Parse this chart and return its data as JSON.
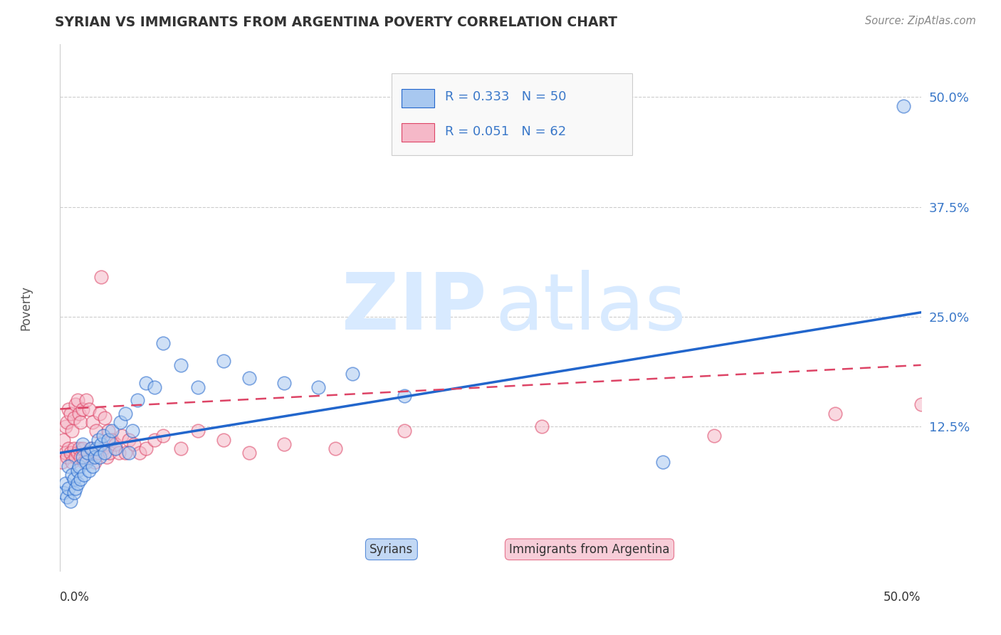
{
  "title": "SYRIAN VS IMMIGRANTS FROM ARGENTINA POVERTY CORRELATION CHART",
  "source": "Source: ZipAtlas.com",
  "ylabel": "Poverty",
  "xlim": [
    0.0,
    0.5
  ],
  "ylim": [
    -0.04,
    0.56
  ],
  "legend_r1": "R = 0.333",
  "legend_n1": "N = 50",
  "legend_r2": "R = 0.051",
  "legend_n2": "N = 62",
  "color_syrian": "#A8C8F0",
  "color_argentina": "#F5B8C8",
  "color_line_syrian": "#2266CC",
  "color_line_argentina": "#DD4466",
  "syrian_line_start_y": 0.095,
  "syrian_line_end_y": 0.255,
  "argentina_line_start_y": 0.145,
  "argentina_line_end_y": 0.195,
  "syrian_x": [
    0.002,
    0.003,
    0.004,
    0.005,
    0.005,
    0.006,
    0.007,
    0.008,
    0.008,
    0.009,
    0.01,
    0.01,
    0.011,
    0.012,
    0.013,
    0.013,
    0.014,
    0.015,
    0.016,
    0.017,
    0.018,
    0.019,
    0.02,
    0.021,
    0.022,
    0.023,
    0.024,
    0.025,
    0.026,
    0.028,
    0.03,
    0.032,
    0.035,
    0.038,
    0.04,
    0.042,
    0.045,
    0.05,
    0.055,
    0.06,
    0.07,
    0.08,
    0.095,
    0.11,
    0.13,
    0.15,
    0.17,
    0.2,
    0.35,
    0.49
  ],
  "syrian_y": [
    0.05,
    0.06,
    0.045,
    0.055,
    0.08,
    0.04,
    0.07,
    0.05,
    0.065,
    0.055,
    0.075,
    0.06,
    0.08,
    0.065,
    0.09,
    0.105,
    0.07,
    0.085,
    0.095,
    0.075,
    0.1,
    0.08,
    0.09,
    0.1,
    0.11,
    0.09,
    0.105,
    0.115,
    0.095,
    0.11,
    0.12,
    0.1,
    0.13,
    0.14,
    0.095,
    0.12,
    0.155,
    0.175,
    0.17,
    0.22,
    0.195,
    0.17,
    0.2,
    0.18,
    0.175,
    0.17,
    0.185,
    0.16,
    0.085,
    0.49
  ],
  "argentina_x": [
    0.001,
    0.002,
    0.003,
    0.003,
    0.004,
    0.004,
    0.005,
    0.005,
    0.006,
    0.006,
    0.007,
    0.007,
    0.008,
    0.008,
    0.009,
    0.009,
    0.01,
    0.01,
    0.011,
    0.011,
    0.012,
    0.012,
    0.013,
    0.013,
    0.014,
    0.015,
    0.016,
    0.017,
    0.018,
    0.019,
    0.02,
    0.021,
    0.022,
    0.023,
    0.024,
    0.025,
    0.026,
    0.027,
    0.028,
    0.029,
    0.03,
    0.032,
    0.034,
    0.036,
    0.038,
    0.04,
    0.043,
    0.046,
    0.05,
    0.055,
    0.06,
    0.07,
    0.08,
    0.095,
    0.11,
    0.13,
    0.16,
    0.2,
    0.28,
    0.38,
    0.45,
    0.5
  ],
  "argentina_y": [
    0.085,
    0.11,
    0.095,
    0.125,
    0.09,
    0.13,
    0.1,
    0.145,
    0.095,
    0.14,
    0.085,
    0.12,
    0.1,
    0.135,
    0.09,
    0.15,
    0.095,
    0.155,
    0.1,
    0.14,
    0.09,
    0.13,
    0.1,
    0.145,
    0.085,
    0.155,
    0.095,
    0.145,
    0.1,
    0.13,
    0.085,
    0.12,
    0.095,
    0.14,
    0.295,
    0.1,
    0.135,
    0.09,
    0.12,
    0.095,
    0.11,
    0.105,
    0.095,
    0.115,
    0.095,
    0.11,
    0.105,
    0.095,
    0.1,
    0.11,
    0.115,
    0.1,
    0.12,
    0.11,
    0.095,
    0.105,
    0.1,
    0.12,
    0.125,
    0.115,
    0.14,
    0.15
  ]
}
